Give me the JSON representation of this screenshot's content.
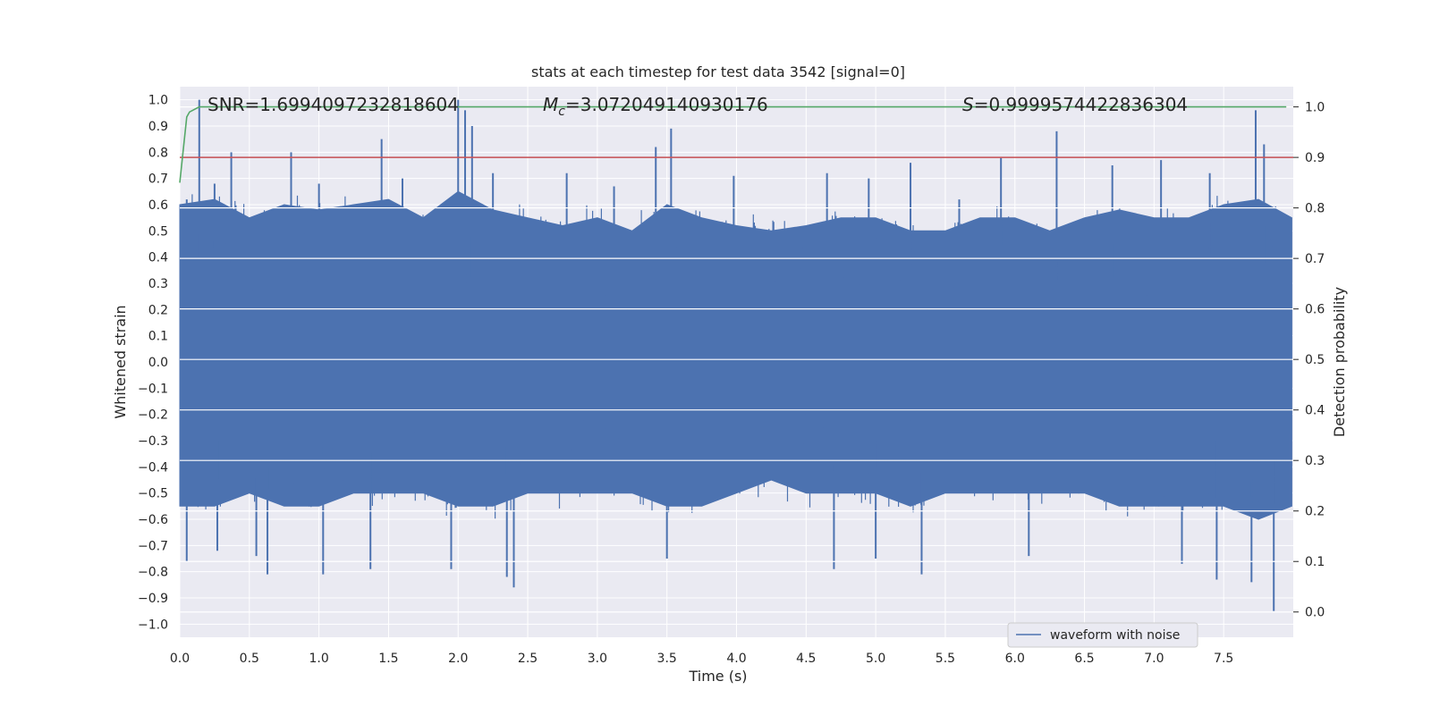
{
  "chart_data": {
    "type": "line",
    "title": "stats at each timestep for test data 3542 [signal=0]",
    "xlabel": "Time (s)",
    "ylabel_left": "Whitened strain",
    "ylabel_right": "Detection probability",
    "xlim": [
      0.0,
      8.0
    ],
    "ylim_left": [
      -1.05,
      1.05
    ],
    "ylim_right": [
      -0.05,
      1.04
    ],
    "xticks": [
      "0.0",
      "0.5",
      "1.0",
      "1.5",
      "2.0",
      "2.5",
      "3.0",
      "3.5",
      "4.0",
      "4.5",
      "5.0",
      "5.5",
      "6.0",
      "6.5",
      "7.0",
      "7.5"
    ],
    "yticks_left": [
      "1.0",
      "0.9",
      "0.8",
      "0.7",
      "0.6",
      "0.5",
      "0.4",
      "0.3",
      "0.2",
      "0.1",
      "0.0",
      "−0.1",
      "−0.2",
      "−0.3",
      "−0.4",
      "−0.5",
      "−0.6",
      "−0.7",
      "−0.8",
      "−0.9",
      "−1.0"
    ],
    "yticks_right": [
      "1.0",
      "0.9",
      "0.8",
      "0.7",
      "0.6",
      "0.5",
      "0.4",
      "0.3",
      "0.2",
      "0.1",
      "0.0"
    ],
    "annotations": {
      "snr": "SNR=1.6994097232818604",
      "mc_symbol": "M",
      "mc_sub": "c",
      "mc_value": "=3.072049140930176",
      "s_symbol": "S",
      "s_value": "=0.9999574422836304"
    },
    "legend": {
      "label": "waveform with noise",
      "placement": "lower-right"
    },
    "threshold": {
      "value": 0.9,
      "axis": "right",
      "color": "#c44e52"
    },
    "series": [
      {
        "name": "waveform with noise",
        "axis": "left",
        "color": "#4c72b0",
        "envelope": {
          "t": [
            0.0,
            0.25,
            0.5,
            0.75,
            1.0,
            1.25,
            1.5,
            1.75,
            2.0,
            2.25,
            2.5,
            2.75,
            3.0,
            3.25,
            3.5,
            3.75,
            4.0,
            4.25,
            4.5,
            4.75,
            5.0,
            5.25,
            5.5,
            5.75,
            6.0,
            6.25,
            6.5,
            6.75,
            7.0,
            7.25,
            7.5,
            7.75,
            7.99
          ],
          "upper": [
            0.6,
            0.62,
            0.55,
            0.6,
            0.58,
            0.6,
            0.62,
            0.55,
            0.65,
            0.58,
            0.55,
            0.52,
            0.55,
            0.5,
            0.6,
            0.55,
            0.52,
            0.5,
            0.52,
            0.55,
            0.55,
            0.5,
            0.5,
            0.55,
            0.55,
            0.5,
            0.55,
            0.58,
            0.55,
            0.55,
            0.6,
            0.62,
            0.55
          ],
          "lower": [
            -0.55,
            -0.55,
            -0.5,
            -0.55,
            -0.55,
            -0.5,
            -0.5,
            -0.5,
            -0.55,
            -0.55,
            -0.5,
            -0.5,
            -0.5,
            -0.5,
            -0.55,
            -0.55,
            -0.5,
            -0.45,
            -0.5,
            -0.5,
            -0.5,
            -0.55,
            -0.5,
            -0.5,
            -0.5,
            -0.5,
            -0.5,
            -0.55,
            -0.55,
            -0.55,
            -0.55,
            -0.6,
            -0.55
          ]
        },
        "peaks": [
          {
            "t": 0.05,
            "y": 0.62
          },
          {
            "t": 0.14,
            "y": 1.0
          },
          {
            "t": 0.25,
            "y": 0.68
          },
          {
            "t": 0.37,
            "y": 0.8
          },
          {
            "t": 0.8,
            "y": 0.8
          },
          {
            "t": 1.0,
            "y": 0.68
          },
          {
            "t": 1.45,
            "y": 0.85
          },
          {
            "t": 1.6,
            "y": 0.7
          },
          {
            "t": 2.0,
            "y": 1.0
          },
          {
            "t": 2.05,
            "y": 0.96
          },
          {
            "t": 2.1,
            "y": 0.9
          },
          {
            "t": 2.25,
            "y": 0.72
          },
          {
            "t": 2.78,
            "y": 0.72
          },
          {
            "t": 3.12,
            "y": 0.67
          },
          {
            "t": 3.42,
            "y": 0.82
          },
          {
            "t": 3.53,
            "y": 0.89
          },
          {
            "t": 3.98,
            "y": 0.71
          },
          {
            "t": 4.65,
            "y": 0.72
          },
          {
            "t": 4.95,
            "y": 0.7
          },
          {
            "t": 5.25,
            "y": 0.76
          },
          {
            "t": 5.6,
            "y": 0.62
          },
          {
            "t": 5.9,
            "y": 0.78
          },
          {
            "t": 6.3,
            "y": 0.88
          },
          {
            "t": 6.7,
            "y": 0.75
          },
          {
            "t": 7.05,
            "y": 0.77
          },
          {
            "t": 7.4,
            "y": 0.72
          },
          {
            "t": 7.73,
            "y": 0.96
          },
          {
            "t": 7.79,
            "y": 0.83
          }
        ],
        "troughs": [
          {
            "t": 0.05,
            "y": -0.76
          },
          {
            "t": 0.27,
            "y": -0.72
          },
          {
            "t": 0.55,
            "y": -0.74
          },
          {
            "t": 0.63,
            "y": -0.81
          },
          {
            "t": 1.03,
            "y": -0.81
          },
          {
            "t": 1.37,
            "y": -0.79
          },
          {
            "t": 1.95,
            "y": -0.79
          },
          {
            "t": 2.35,
            "y": -0.82
          },
          {
            "t": 2.4,
            "y": -0.86
          },
          {
            "t": 3.5,
            "y": -0.75
          },
          {
            "t": 4.7,
            "y": -0.79
          },
          {
            "t": 5.0,
            "y": -0.75
          },
          {
            "t": 5.33,
            "y": -0.81
          },
          {
            "t": 6.1,
            "y": -0.74
          },
          {
            "t": 7.2,
            "y": -0.77
          },
          {
            "t": 7.45,
            "y": -0.83
          },
          {
            "t": 7.7,
            "y": -0.84
          },
          {
            "t": 7.86,
            "y": -0.95
          }
        ]
      },
      {
        "name": "",
        "axis": "right",
        "color": "#55a868",
        "x": [
          0.0,
          0.05,
          0.07,
          0.14,
          0.5,
          1.0,
          2.0,
          3.0,
          4.0,
          5.0,
          6.0,
          7.0,
          7.95
        ],
        "y": [
          0.85,
          0.98,
          0.99,
          1.0,
          1.0,
          1.0,
          1.0,
          1.0,
          1.0,
          1.0,
          1.0,
          1.0,
          1.0
        ]
      }
    ],
    "grid": true
  }
}
